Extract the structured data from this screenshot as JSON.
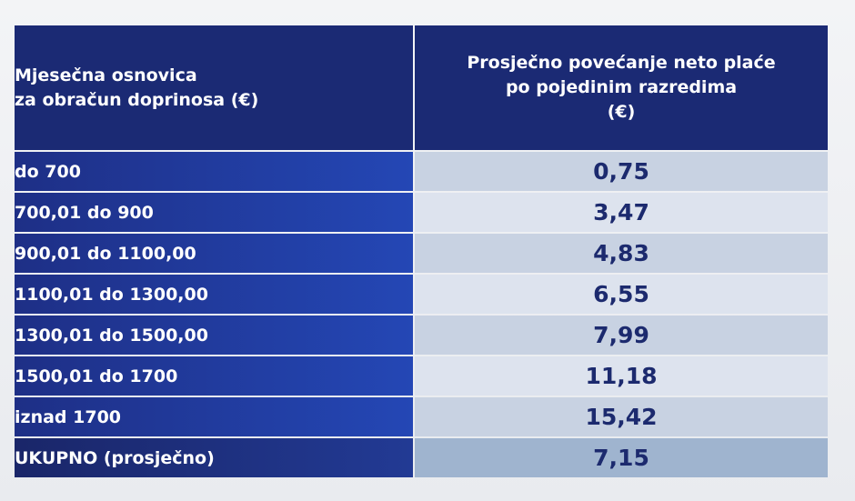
{
  "header": {
    "left_line1": "Mjesečna osnovica",
    "left_line2": "za obračun doprinosa (€)",
    "right_line1": "Prosječno povećanje neto plaće",
    "right_line2": "po pojedinim razredima",
    "right_line3": "(€)"
  },
  "rows": [
    {
      "band": "do 700",
      "value": "0,75"
    },
    {
      "band": "700,01 do 900",
      "value": "3,47"
    },
    {
      "band": "900,01 do 1100,00",
      "value": "4,83"
    },
    {
      "band": "1100,01 do 1300,00",
      "value": "6,55"
    },
    {
      "band": "1300,01 do 1500,00",
      "value": "7,99"
    },
    {
      "band": "1500,01 do 1700",
      "value": "11,18"
    },
    {
      "band": "iznad 1700",
      "value": "15,42"
    }
  ],
  "total": {
    "band": "UKUPNO (prosječno)",
    "value": "7,15"
  },
  "colors": {
    "header_bg": "#1b2a74",
    "band_bg": "#2447b5",
    "value_text": "#1c2a6e"
  }
}
